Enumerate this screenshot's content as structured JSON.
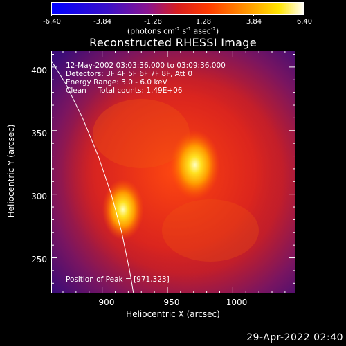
{
  "colorbar": {
    "tick_labels": [
      "-6.40",
      "-3.84",
      "-1.28",
      "1.28",
      "3.84",
      "6.40"
    ],
    "min": -6.4,
    "max": 6.4,
    "units_label": "(photons cm",
    "units_sup1": "-2",
    "units_mid": " s",
    "units_sup2": "-1",
    "units_end": " asec",
    "units_sup3": "-2",
    "units_close": ")"
  },
  "chart_data": {
    "type": "heatmap",
    "title": "Reconstructed RHESSI Image",
    "xlabel": "Heliocentric X (arcsec)",
    "ylabel": "Heliocentric Y (arcsec)",
    "xlim": [
      861,
      1048
    ],
    "ylim": [
      222,
      413
    ],
    "x_ticks": [
      900,
      950,
      1000
    ],
    "y_ticks": [
      250,
      300,
      350,
      400
    ],
    "colormap": "RHESSI red-temperature (blue → purple → red → orange → yellow → white)",
    "sources": [
      {
        "name": "peak",
        "x": 971,
        "y": 323
      },
      {
        "name": "secondary",
        "x": 916,
        "y": 288
      }
    ],
    "limb_curve": [
      [
        858,
        410
      ],
      [
        872,
        387
      ],
      [
        885,
        360
      ],
      [
        897,
        330
      ],
      [
        907,
        300
      ],
      [
        915,
        270
      ],
      [
        921,
        240
      ],
      [
        924,
        222
      ]
    ],
    "annotations": [
      "12-May-2002 03:03:36.000 to 03:09:36.000",
      "Detectors: 3F 4F 5F 6F 7F 8F, Att 0",
      "Energy Range: 3.0 - 6.0 keV",
      "Clean     Total counts: 1.49E+06",
      "Position of Peak = [971,323]"
    ]
  },
  "footer": {
    "timestamp": "29-Apr-2022 02:40"
  },
  "colors": {
    "background": "#000000",
    "foreground": "#ffffff",
    "colormap_stops": [
      "#0000ff",
      "#6a0dad",
      "#b01a3a",
      "#e62a00",
      "#ff8a00",
      "#ffd800",
      "#ffffff"
    ]
  }
}
